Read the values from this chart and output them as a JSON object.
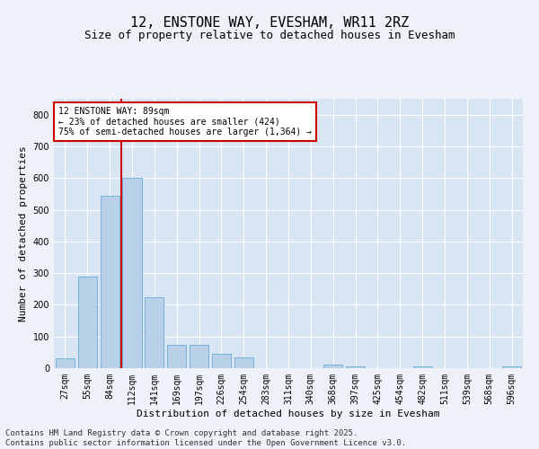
{
  "title": "12, ENSTONE WAY, EVESHAM, WR11 2RZ",
  "subtitle": "Size of property relative to detached houses in Evesham",
  "xlabel": "Distribution of detached houses by size in Evesham",
  "ylabel": "Number of detached properties",
  "categories": [
    "27sqm",
    "55sqm",
    "84sqm",
    "112sqm",
    "141sqm",
    "169sqm",
    "197sqm",
    "226sqm",
    "254sqm",
    "283sqm",
    "311sqm",
    "340sqm",
    "368sqm",
    "397sqm",
    "425sqm",
    "454sqm",
    "482sqm",
    "511sqm",
    "539sqm",
    "568sqm",
    "596sqm"
  ],
  "values": [
    30,
    290,
    545,
    600,
    225,
    75,
    75,
    45,
    35,
    0,
    0,
    0,
    12,
    6,
    0,
    0,
    5,
    0,
    0,
    0,
    5
  ],
  "bar_color": "#b8d0e8",
  "bar_edge_color": "#6aaad4",
  "vline_x_index": 2.5,
  "vline_color": "#cc0000",
  "annotation_line1": "12 ENSTONE WAY: 89sqm",
  "annotation_line2": "← 23% of detached houses are smaller (424)",
  "annotation_line3": "75% of semi-detached houses are larger (1,364) →",
  "annotation_box_facecolor": "#ffffff",
  "annotation_box_edgecolor": "#cc0000",
  "ylim": [
    0,
    850
  ],
  "yticks": [
    0,
    100,
    200,
    300,
    400,
    500,
    600,
    700,
    800
  ],
  "footer_line1": "Contains HM Land Registry data © Crown copyright and database right 2025.",
  "footer_line2": "Contains public sector information licensed under the Open Government Licence v3.0.",
  "bg_color": "#eef2f8",
  "plot_bg_color": "#d8e6f3",
  "grid_color": "#ffffff",
  "title_fontsize": 11,
  "subtitle_fontsize": 9,
  "axis_label_fontsize": 8,
  "tick_fontsize": 7,
  "annot_fontsize": 7,
  "footer_fontsize": 6.5
}
